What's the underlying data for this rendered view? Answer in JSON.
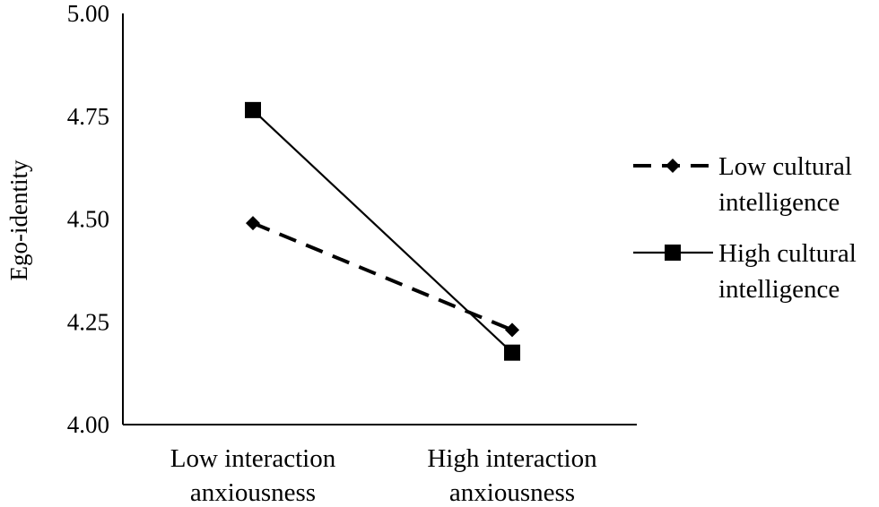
{
  "chart_data": {
    "type": "line",
    "title": "",
    "xlabel": "",
    "ylabel": "Ego-identity",
    "ylim": [
      4.0,
      5.0
    ],
    "yticks": [
      "4.00",
      "4.25",
      "4.50",
      "4.75",
      "5.00"
    ],
    "ytick_values": [
      4.0,
      4.25,
      4.5,
      4.75,
      5.0
    ],
    "categories": [
      [
        "Low interaction",
        "anxiousness"
      ],
      [
        "High interaction",
        "anxiousness"
      ]
    ],
    "series": [
      {
        "name": "Low cultural intelligence",
        "legend_lines": [
          "Low cultural",
          "intelligence"
        ],
        "values": [
          4.49,
          4.23
        ],
        "marker": "diamond",
        "line_style": "dashed",
        "color": "#000000"
      },
      {
        "name": "High cultural intelligence",
        "legend_lines": [
          "High cultural",
          "intelligence"
        ],
        "values": [
          4.765,
          4.175
        ],
        "marker": "square",
        "line_style": "solid",
        "color": "#000000"
      }
    ],
    "grid": false,
    "legend_position": "right"
  }
}
